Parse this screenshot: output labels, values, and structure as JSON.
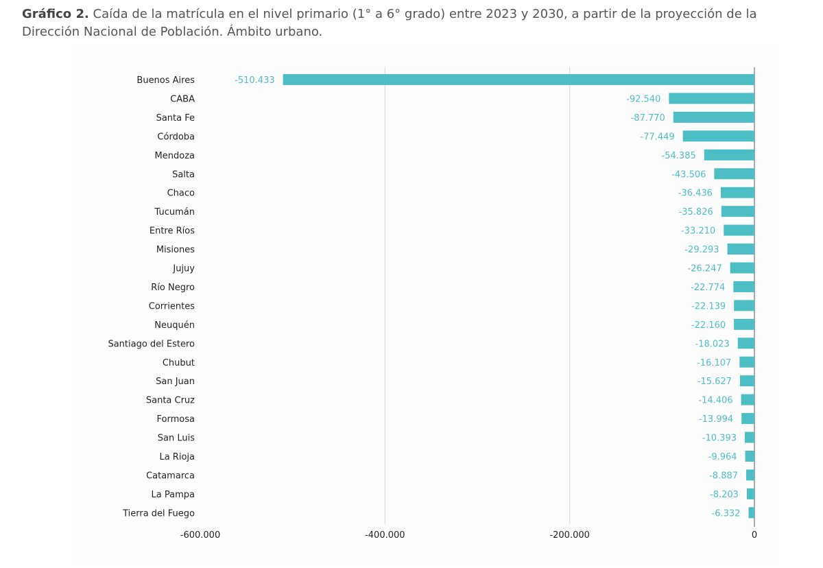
{
  "caption": {
    "label": "Gráfico 2.",
    "text": "Caída de la matrícula en el nivel primario (1° a 6° grado) entre 2023 y 2030, a partir de la proyección de la Dirección Nacional de Población. Ámbito urbano."
  },
  "colors": {
    "bar": "#4dbec6",
    "grid": "#d9d9d9",
    "axis": "#555555",
    "label": "#4dbec6"
  },
  "chart_data": {
    "type": "bar",
    "orientation": "horizontal",
    "title": "",
    "xlabel": "",
    "ylabel": "",
    "xlim": [
      -600000,
      0
    ],
    "grid": true,
    "x_ticks": [
      -600000,
      -400000,
      -200000,
      0
    ],
    "x_tick_labels": [
      "-600.000",
      "-400.000",
      "-200.000",
      "0"
    ],
    "categories": [
      "Buenos Aires",
      "CABA",
      "Santa Fe",
      "Córdoba",
      "Mendoza",
      "Salta",
      "Chaco",
      "Tucumán",
      "Entre Ríos",
      "Misiones",
      "Jujuy",
      "Río Negro",
      "Corrientes",
      "Neuquén",
      "Santiago del Estero",
      "Chubut",
      "San Juan",
      "Santa Cruz",
      "Formosa",
      "San Luis",
      "La Rioja",
      "Catamarca",
      "La Pampa",
      "Tierra del Fuego"
    ],
    "values": [
      -510433,
      -92540,
      -87770,
      -77449,
      -54385,
      -43506,
      -36436,
      -35826,
      -33210,
      -29293,
      -26247,
      -22774,
      -22139,
      -22160,
      -18023,
      -16107,
      -15627,
      -14406,
      -13994,
      -10393,
      -9964,
      -8887,
      -8203,
      -6332
    ],
    "value_labels": [
      "-510.433",
      "-92.540",
      "-87.770",
      "-77.449",
      "-54.385",
      "-43.506",
      "-36.436",
      "-35.826",
      "-33.210",
      "-29.293",
      "-26.247",
      "-22.774",
      "-22.139",
      "-22.160",
      "-18.023",
      "-16.107",
      "-15.627",
      "-14.406",
      "-13.994",
      "-10.393",
      "-9.964",
      "-8.887",
      "-8.203",
      "-6.332"
    ]
  }
}
